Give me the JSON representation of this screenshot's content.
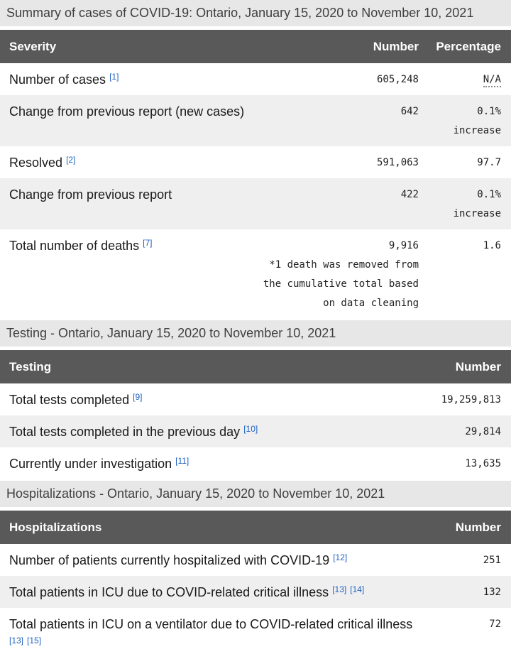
{
  "colors": {
    "banner_bg": "#e7e7e7",
    "banner_text": "#3f3f3f",
    "header_bg": "#595959",
    "header_text": "#ffffff",
    "row_alt_bg": "#efefef",
    "body_text": "#1a1a1a",
    "link_blue": "#2163c3"
  },
  "tables": [
    {
      "caption": "Summary of cases of COVID-19: Ontario, January 15, 2020 to November 10, 2021",
      "columns": [
        "Severity",
        "Number",
        "Percentage"
      ],
      "rows": [
        {
          "label": "Number of cases",
          "refs": [
            "[1]"
          ],
          "number": "605,248",
          "percentage": "N/A",
          "na": true
        },
        {
          "label": "Change from previous report (new cases)",
          "refs": [],
          "number": "642",
          "percentage": "0.1% increase"
        },
        {
          "label": "Resolved",
          "refs": [
            "[2]"
          ],
          "number": "591,063",
          "percentage": "97.7"
        },
        {
          "label": "Change from previous report",
          "refs": [],
          "number": "422",
          "percentage": "0.1% increase"
        },
        {
          "label": "Total number of deaths",
          "refs": [
            "[7]"
          ],
          "number": "9,916",
          "number_note": "*1 death was removed from the cumulative total based on data cleaning",
          "percentage": "1.6"
        }
      ]
    },
    {
      "caption": "Testing - Ontario, January 15, 2020 to November 10, 2021",
      "columns": [
        "Testing",
        "Number"
      ],
      "rows": [
        {
          "label": "Total tests completed",
          "refs": [
            "[9]"
          ],
          "number": "19,259,813"
        },
        {
          "label": "Total tests completed in the previous day",
          "refs": [
            "[10]"
          ],
          "number": "29,814"
        },
        {
          "label": "Currently under investigation",
          "refs": [
            "[11]"
          ],
          "number": "13,635"
        }
      ]
    },
    {
      "caption": "Hospitalizations - Ontario, January 15, 2020 to November 10, 2021",
      "columns": [
        "Hospitalizations",
        "Number"
      ],
      "rows": [
        {
          "label": "Number of patients currently hospitalized with COVID-19",
          "refs": [
            "[12]"
          ],
          "number": "251"
        },
        {
          "label": "Total patients in ICU due to COVID-related critical illness",
          "refs": [
            "[13]",
            "[14]"
          ],
          "number": "132"
        },
        {
          "label": "Total patients in ICU on a ventilator due to COVID-related critical illness",
          "refs": [
            "[13]",
            "[15]"
          ],
          "number": "72"
        }
      ]
    }
  ]
}
